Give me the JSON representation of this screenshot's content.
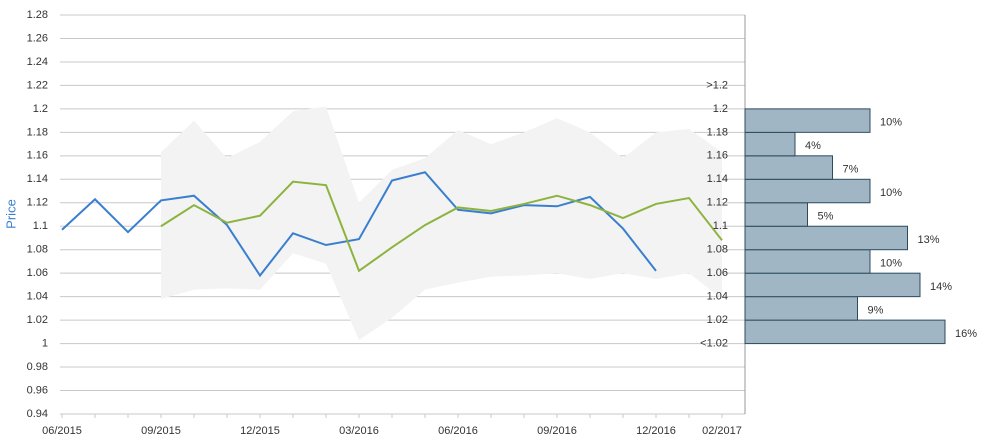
{
  "chart_data": [
    {
      "type": "line",
      "y_label": "Price",
      "categories": [
        "06/2015",
        null,
        null,
        "09/2015",
        null,
        null,
        "12/2015",
        null,
        null,
        "03/2016",
        null,
        null,
        "06/2016",
        null,
        null,
        "09/2016",
        null,
        null,
        "12/2016",
        null,
        "02/2017"
      ],
      "series": [
        {
          "color": "#3a7fcf",
          "values": [
            1.097,
            1.123,
            1.095,
            1.122,
            1.126,
            1.101,
            1.058,
            1.094,
            1.084,
            1.089,
            1.139,
            1.146,
            1.114,
            1.111,
            1.118,
            1.117,
            1.125,
            1.098,
            1.062,
            null,
            null
          ]
        },
        {
          "color": "#8db33f",
          "values": [
            null,
            null,
            null,
            1.1,
            1.118,
            1.103,
            1.109,
            1.138,
            1.135,
            1.062,
            1.082,
            1.101,
            1.116,
            1.113,
            1.119,
            1.126,
            1.118,
            1.107,
            1.119,
            1.124,
            1.088
          ]
        }
      ],
      "band": {
        "color": "#f3f3f3",
        "upper": [
          null,
          null,
          null,
          1.163,
          1.19,
          1.158,
          1.172,
          1.198,
          1.202,
          1.12,
          1.148,
          1.158,
          1.182,
          1.17,
          1.18,
          1.192,
          1.18,
          1.158,
          1.18,
          1.183,
          1.163
        ],
        "lower": [
          null,
          null,
          null,
          1.038,
          1.046,
          1.047,
          1.046,
          1.077,
          1.068,
          1.003,
          1.022,
          1.046,
          1.052,
          1.057,
          1.058,
          1.06,
          1.055,
          1.06,
          1.055,
          1.06,
          1.038
        ]
      },
      "ylim": [
        0.94,
        1.28
      ],
      "yticks": [
        0.94,
        0.96,
        0.98,
        1,
        1.02,
        1.04,
        1.06,
        1.08,
        1.1,
        1.12,
        1.14,
        1.16,
        1.18,
        1.2,
        1.22,
        1.24,
        1.26,
        1.28
      ],
      "grid": true
    },
    {
      "type": "histogram",
      "orientation": "horizontal",
      "bins": [
        1.0,
        1.02,
        1.04,
        1.06,
        1.08,
        1.1,
        1.12,
        1.14,
        1.16,
        1.18,
        1.2
      ],
      "values": [
        16,
        9,
        14,
        10,
        13,
        5,
        10,
        7,
        4,
        10
      ],
      "value_labels": [
        "16%",
        "9%",
        "14%",
        "10%",
        "13%",
        "5%",
        "10%",
        "7%",
        "4%",
        "10%"
      ],
      "color": "#a0b6c4",
      "edge_color": "#2c4b5e",
      "ylim": [
        0.94,
        1.28
      ],
      "yticks": [
        {
          "value": 1.0,
          "label": "<1.02"
        },
        1.02,
        1.04,
        1.06,
        1.08,
        1.1,
        1.12,
        1.14,
        1.16,
        1.18,
        1.2,
        {
          "value": 1.22,
          "label": ">1.2"
        }
      ]
    }
  ]
}
